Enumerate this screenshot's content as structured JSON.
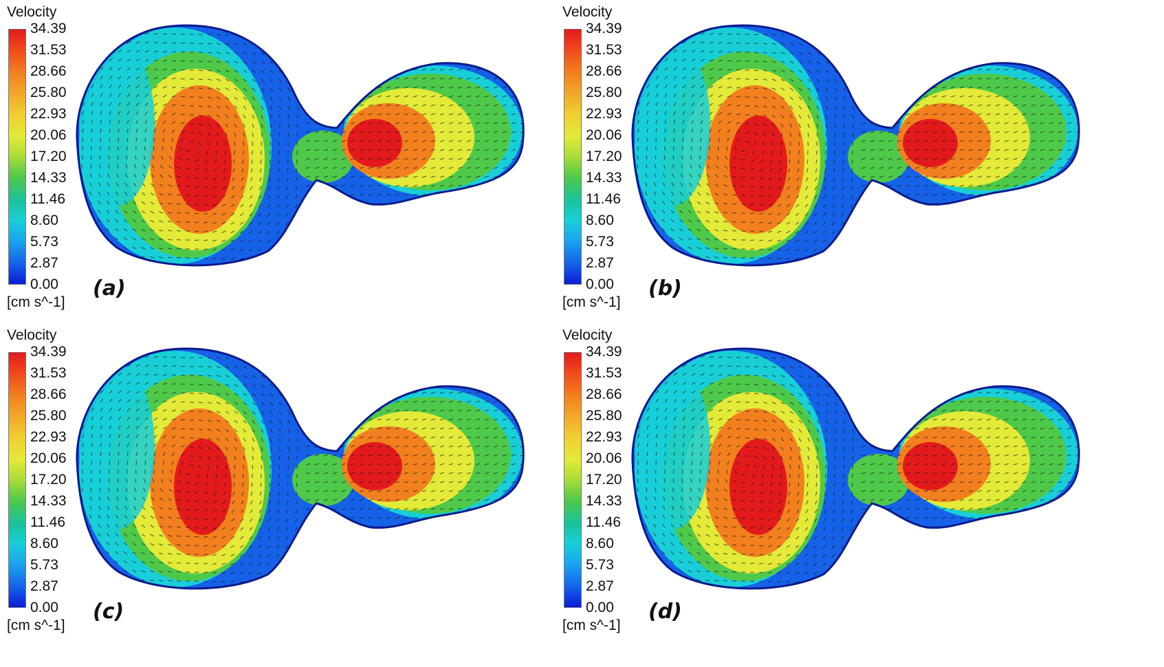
{
  "legend": {
    "title": "Velocity",
    "unit": "[cm s^-1]",
    "ticks": [
      "34.39",
      "31.53",
      "28.66",
      "25.80",
      "22.93",
      "20.06",
      "17.20",
      "14.33",
      "11.46",
      "8.60",
      "5.73",
      "2.87",
      "0.00"
    ]
  },
  "panels": [
    {
      "label": "(a)"
    },
    {
      "label": "(b)"
    },
    {
      "label": "(c)"
    },
    {
      "label": "(d)"
    }
  ],
  "colors": {
    "max": "#e31a1c",
    "high": "#f2801e",
    "mid_high": "#e3ea38",
    "mid": "#4fc94a",
    "mid_low": "#18cfd8",
    "low": "#1562e8",
    "min": "#0a1cd8",
    "vectors": "#1a1a1a"
  }
}
